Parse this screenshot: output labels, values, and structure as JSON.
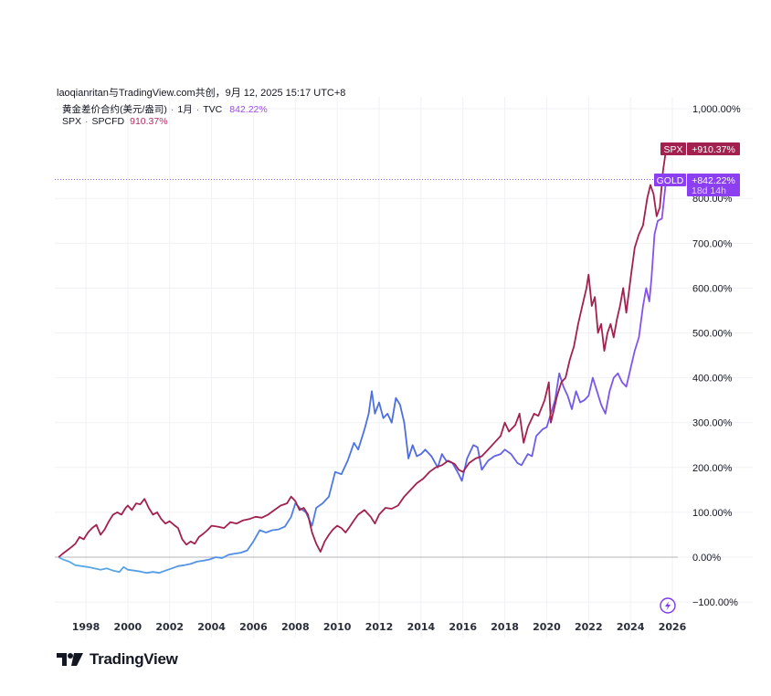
{
  "attribution": "laoqianritan与TradingView.com共创，9月 12, 2025 15:17 UTC+8",
  "legend": {
    "gold": {
      "name": "黄金差价合约(美元/盎司)",
      "interval": "1月",
      "source": "TVC",
      "value": "842.22%"
    },
    "spx": {
      "name": "SPX",
      "source": "SPCFD",
      "value": "910.37%"
    }
  },
  "badges": {
    "spx": {
      "label": "SPX",
      "value": "+910.37%"
    },
    "gold": {
      "label": "GOLD",
      "value": "+842.22%",
      "countdown": "18d 14h"
    }
  },
  "branding": {
    "logo_text": "TradingView"
  },
  "icons": {
    "flash": "lightning-bolt-icon"
  },
  "colors": {
    "spx": "#a3214f",
    "gold_start": "#5aaee8",
    "gold_mid": "#4a6ee0",
    "gold_end": "#8a4ff0",
    "badge_spx": "#a3214f",
    "badge_gold": "#8b3ff0"
  },
  "chart_data": {
    "type": "line",
    "title": "",
    "xlabel": "",
    "ylabel": "",
    "x_tick_labels": [
      "1998",
      "2000",
      "2002",
      "2004",
      "2006",
      "2008",
      "2010",
      "2012",
      "2014",
      "2016",
      "2018",
      "2020",
      "2022",
      "2024",
      "2026"
    ],
    "y_tick_labels": [
      "1,000.00%",
      "800.00%",
      "700.00%",
      "600.00%",
      "500.00%",
      "400.00%",
      "300.00%",
      "200.00%",
      "100.00%",
      "0.00%",
      "−100.00%"
    ],
    "y_ticks": [
      1000,
      800,
      700,
      600,
      500,
      400,
      300,
      200,
      100,
      0,
      -100
    ],
    "xlim": [
      1996.6,
      2026.2
    ],
    "ylim": [
      -130,
      1010
    ],
    "grid": true,
    "legend_position": "top-left",
    "reference_line": {
      "y": 842.22,
      "style": "dotted"
    },
    "series": [
      {
        "name": "SPX · SPCFD",
        "last_value": 910.37,
        "points": [
          [
            1996.7,
            0
          ],
          [
            1996.9,
            8
          ],
          [
            1997.1,
            15
          ],
          [
            1997.3,
            22
          ],
          [
            1997.5,
            30
          ],
          [
            1997.7,
            45
          ],
          [
            1997.9,
            40
          ],
          [
            1998.1,
            55
          ],
          [
            1998.3,
            65
          ],
          [
            1998.5,
            72
          ],
          [
            1998.7,
            50
          ],
          [
            1998.9,
            62
          ],
          [
            1999.1,
            80
          ],
          [
            1999.3,
            95
          ],
          [
            1999.5,
            100
          ],
          [
            1999.7,
            95
          ],
          [
            1999.9,
            110
          ],
          [
            2000.0,
            115
          ],
          [
            2000.2,
            105
          ],
          [
            2000.4,
            120
          ],
          [
            2000.6,
            118
          ],
          [
            2000.8,
            130
          ],
          [
            2001.0,
            110
          ],
          [
            2001.2,
            95
          ],
          [
            2001.4,
            100
          ],
          [
            2001.6,
            85
          ],
          [
            2001.8,
            75
          ],
          [
            2002.0,
            80
          ],
          [
            2002.2,
            72
          ],
          [
            2002.4,
            65
          ],
          [
            2002.6,
            40
          ],
          [
            2002.8,
            28
          ],
          [
            2003.0,
            35
          ],
          [
            2003.2,
            30
          ],
          [
            2003.4,
            45
          ],
          [
            2003.6,
            52
          ],
          [
            2003.8,
            60
          ],
          [
            2004.0,
            70
          ],
          [
            2004.3,
            68
          ],
          [
            2004.6,
            65
          ],
          [
            2004.9,
            78
          ],
          [
            2005.2,
            75
          ],
          [
            2005.5,
            82
          ],
          [
            2005.8,
            85
          ],
          [
            2006.1,
            90
          ],
          [
            2006.4,
            88
          ],
          [
            2006.7,
            95
          ],
          [
            2007.0,
            105
          ],
          [
            2007.3,
            115
          ],
          [
            2007.6,
            120
          ],
          [
            2007.8,
            135
          ],
          [
            2008.0,
            125
          ],
          [
            2008.2,
            105
          ],
          [
            2008.4,
            110
          ],
          [
            2008.6,
            95
          ],
          [
            2008.8,
            55
          ],
          [
            2009.0,
            30
          ],
          [
            2009.2,
            12
          ],
          [
            2009.4,
            35
          ],
          [
            2009.6,
            50
          ],
          [
            2009.8,
            62
          ],
          [
            2010.0,
            70
          ],
          [
            2010.2,
            65
          ],
          [
            2010.4,
            55
          ],
          [
            2010.6,
            68
          ],
          [
            2010.8,
            82
          ],
          [
            2011.0,
            95
          ],
          [
            2011.3,
            105
          ],
          [
            2011.6,
            90
          ],
          [
            2011.8,
            75
          ],
          [
            2012.0,
            95
          ],
          [
            2012.3,
            110
          ],
          [
            2012.6,
            108
          ],
          [
            2012.9,
            115
          ],
          [
            2013.2,
            135
          ],
          [
            2013.5,
            150
          ],
          [
            2013.8,
            165
          ],
          [
            2014.1,
            175
          ],
          [
            2014.4,
            190
          ],
          [
            2014.7,
            200
          ],
          [
            2015.0,
            205
          ],
          [
            2015.3,
            215
          ],
          [
            2015.6,
            208
          ],
          [
            2015.8,
            195
          ],
          [
            2016.0,
            190
          ],
          [
            2016.3,
            210
          ],
          [
            2016.6,
            220
          ],
          [
            2016.9,
            225
          ],
          [
            2017.2,
            240
          ],
          [
            2017.5,
            255
          ],
          [
            2017.8,
            270
          ],
          [
            2018.0,
            300
          ],
          [
            2018.2,
            280
          ],
          [
            2018.5,
            295
          ],
          [
            2018.7,
            320
          ],
          [
            2018.9,
            255
          ],
          [
            2019.1,
            290
          ],
          [
            2019.4,
            320
          ],
          [
            2019.6,
            315
          ],
          [
            2019.9,
            350
          ],
          [
            2020.1,
            390
          ],
          [
            2020.2,
            300
          ],
          [
            2020.35,
            330
          ],
          [
            2020.5,
            360
          ],
          [
            2020.7,
            390
          ],
          [
            2020.9,
            400
          ],
          [
            2021.1,
            440
          ],
          [
            2021.3,
            470
          ],
          [
            2021.5,
            520
          ],
          [
            2021.7,
            560
          ],
          [
            2021.9,
            600
          ],
          [
            2022.0,
            630
          ],
          [
            2022.15,
            560
          ],
          [
            2022.3,
            580
          ],
          [
            2022.45,
            500
          ],
          [
            2022.6,
            520
          ],
          [
            2022.75,
            460
          ],
          [
            2022.9,
            500
          ],
          [
            2023.05,
            520
          ],
          [
            2023.2,
            490
          ],
          [
            2023.35,
            530
          ],
          [
            2023.5,
            560
          ],
          [
            2023.65,
            600
          ],
          [
            2023.8,
            545
          ],
          [
            2024.0,
            620
          ],
          [
            2024.2,
            690
          ],
          [
            2024.4,
            720
          ],
          [
            2024.6,
            740
          ],
          [
            2024.8,
            800
          ],
          [
            2024.95,
            830
          ],
          [
            2025.1,
            810
          ],
          [
            2025.25,
            760
          ],
          [
            2025.4,
            780
          ],
          [
            2025.55,
            860
          ],
          [
            2025.7,
            910.37
          ]
        ]
      },
      {
        "name": "黄金差价合约(美元/盎司) · 1月 · TVC",
        "last_value": 842.22,
        "points": [
          [
            1996.7,
            0
          ],
          [
            1996.9,
            -5
          ],
          [
            1997.2,
            -10
          ],
          [
            1997.5,
            -18
          ],
          [
            1997.8,
            -20
          ],
          [
            1998.1,
            -22
          ],
          [
            1998.4,
            -25
          ],
          [
            1998.7,
            -28
          ],
          [
            1999.0,
            -25
          ],
          [
            1999.3,
            -30
          ],
          [
            1999.6,
            -33
          ],
          [
            1999.8,
            -22
          ],
          [
            2000.0,
            -28
          ],
          [
            2000.3,
            -30
          ],
          [
            2000.6,
            -32
          ],
          [
            2000.9,
            -35
          ],
          [
            2001.2,
            -33
          ],
          [
            2001.5,
            -35
          ],
          [
            2001.8,
            -30
          ],
          [
            2002.1,
            -25
          ],
          [
            2002.4,
            -20
          ],
          [
            2002.7,
            -18
          ],
          [
            2003.0,
            -15
          ],
          [
            2003.3,
            -10
          ],
          [
            2003.6,
            -8
          ],
          [
            2003.9,
            -5
          ],
          [
            2004.2,
            0
          ],
          [
            2004.5,
            -2
          ],
          [
            2004.8,
            5
          ],
          [
            2005.1,
            8
          ],
          [
            2005.4,
            10
          ],
          [
            2005.7,
            15
          ],
          [
            2006.0,
            35
          ],
          [
            2006.3,
            60
          ],
          [
            2006.6,
            55
          ],
          [
            2006.9,
            60
          ],
          [
            2007.2,
            62
          ],
          [
            2007.5,
            68
          ],
          [
            2007.8,
            90
          ],
          [
            2008.0,
            120
          ],
          [
            2008.2,
            110
          ],
          [
            2008.5,
            100
          ],
          [
            2008.8,
            70
          ],
          [
            2009.0,
            110
          ],
          [
            2009.3,
            120
          ],
          [
            2009.6,
            135
          ],
          [
            2009.9,
            190
          ],
          [
            2010.2,
            185
          ],
          [
            2010.5,
            215
          ],
          [
            2010.8,
            255
          ],
          [
            2011.0,
            240
          ],
          [
            2011.3,
            285
          ],
          [
            2011.5,
            320
          ],
          [
            2011.65,
            370
          ],
          [
            2011.8,
            320
          ],
          [
            2012.0,
            345
          ],
          [
            2012.2,
            310
          ],
          [
            2012.4,
            320
          ],
          [
            2012.6,
            300
          ],
          [
            2012.8,
            355
          ],
          [
            2013.0,
            340
          ],
          [
            2013.2,
            300
          ],
          [
            2013.4,
            220
          ],
          [
            2013.6,
            250
          ],
          [
            2013.8,
            225
          ],
          [
            2014.0,
            230
          ],
          [
            2014.2,
            240
          ],
          [
            2014.5,
            225
          ],
          [
            2014.8,
            200
          ],
          [
            2015.0,
            230
          ],
          [
            2015.2,
            215
          ],
          [
            2015.5,
            210
          ],
          [
            2015.8,
            185
          ],
          [
            2015.95,
            170
          ],
          [
            2016.2,
            220
          ],
          [
            2016.5,
            250
          ],
          [
            2016.7,
            245
          ],
          [
            2016.9,
            195
          ],
          [
            2017.2,
            215
          ],
          [
            2017.5,
            225
          ],
          [
            2017.8,
            230
          ],
          [
            2018.0,
            240
          ],
          [
            2018.3,
            230
          ],
          [
            2018.6,
            210
          ],
          [
            2018.8,
            205
          ],
          [
            2019.1,
            230
          ],
          [
            2019.3,
            225
          ],
          [
            2019.5,
            270
          ],
          [
            2019.8,
            285
          ],
          [
            2020.0,
            290
          ],
          [
            2020.2,
            320
          ],
          [
            2020.4,
            350
          ],
          [
            2020.6,
            410
          ],
          [
            2020.8,
            380
          ],
          [
            2021.0,
            360
          ],
          [
            2021.2,
            330
          ],
          [
            2021.4,
            370
          ],
          [
            2021.6,
            345
          ],
          [
            2021.8,
            350
          ],
          [
            2022.0,
            360
          ],
          [
            2022.2,
            400
          ],
          [
            2022.4,
            370
          ],
          [
            2022.6,
            340
          ],
          [
            2022.8,
            320
          ],
          [
            2023.0,
            370
          ],
          [
            2023.2,
            400
          ],
          [
            2023.4,
            410
          ],
          [
            2023.6,
            390
          ],
          [
            2023.8,
            380
          ],
          [
            2024.0,
            420
          ],
          [
            2024.2,
            460
          ],
          [
            2024.4,
            490
          ],
          [
            2024.6,
            560
          ],
          [
            2024.75,
            600
          ],
          [
            2024.9,
            570
          ],
          [
            2025.0,
            620
          ],
          [
            2025.15,
            720
          ],
          [
            2025.3,
            750
          ],
          [
            2025.5,
            755
          ],
          [
            2025.7,
            842.22
          ]
        ]
      }
    ]
  }
}
